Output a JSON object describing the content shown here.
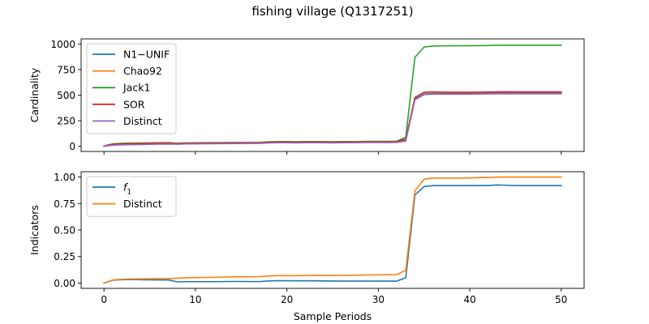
{
  "figure": {
    "title": "fishing village (Q1317251)"
  },
  "chart_data": [
    {
      "type": "line",
      "title": "",
      "xlabel": "",
      "ylabel": "Cardinality",
      "xlim": [
        -2.5,
        52.5
      ],
      "ylim": [
        -50,
        1050
      ],
      "xticks": [
        0,
        10,
        20,
        30,
        40,
        50
      ],
      "yticks": [
        0,
        250,
        500,
        750,
        1000
      ],
      "ytick_labels": [
        "0",
        "250",
        "500",
        "750",
        "1000"
      ],
      "xtick_labels_shown": false,
      "legend_position": "upper-left",
      "grid": false,
      "x": [
        0,
        1,
        2,
        3,
        4,
        5,
        6,
        7,
        8,
        9,
        10,
        11,
        12,
        13,
        14,
        15,
        16,
        17,
        18,
        19,
        20,
        21,
        22,
        23,
        24,
        25,
        26,
        27,
        28,
        29,
        30,
        31,
        32,
        33,
        34,
        35,
        36,
        37,
        38,
        39,
        40,
        41,
        42,
        43,
        44,
        45,
        46,
        47,
        48,
        49,
        50
      ],
      "series": [
        {
          "name": "N1−UNIF",
          "color": "#1f77b4",
          "values": [
            2,
            18,
            22,
            25,
            25,
            27,
            28,
            29,
            24,
            26,
            27,
            28,
            28,
            29,
            30,
            30,
            31,
            31,
            36,
            38,
            38,
            37,
            38,
            38,
            38,
            37,
            38,
            38,
            39,
            40,
            40,
            40,
            41,
            60,
            460,
            510,
            515,
            515,
            515,
            515,
            515,
            516,
            517,
            518,
            518,
            518,
            518,
            518,
            518,
            518,
            518
          ]
        },
        {
          "name": "Chao92",
          "color": "#ff7f0e",
          "values": [
            3,
            20,
            25,
            27,
            28,
            30,
            32,
            33,
            28,
            30,
            31,
            32,
            32,
            33,
            34,
            34,
            35,
            35,
            40,
            42,
            42,
            41,
            42,
            42,
            42,
            41,
            42,
            42,
            43,
            44,
            44,
            44,
            45,
            70,
            480,
            525,
            530,
            528,
            527,
            527,
            527,
            528,
            529,
            530,
            531,
            530,
            530,
            530,
            530,
            530,
            530
          ]
        },
        {
          "name": "Jack1",
          "color": "#2ca02c",
          "values": [
            4,
            25,
            30,
            32,
            33,
            34,
            35,
            36,
            31,
            34,
            35,
            36,
            36,
            37,
            38,
            38,
            38,
            39,
            45,
            47,
            47,
            46,
            47,
            47,
            47,
            46,
            47,
            47,
            48,
            49,
            49,
            49,
            50,
            90,
            870,
            970,
            980,
            982,
            982,
            983,
            983,
            984,
            985,
            988,
            988,
            988,
            988,
            988,
            988,
            988,
            988
          ]
        },
        {
          "name": "SOR",
          "color": "#d62728",
          "values": [
            3,
            20,
            25,
            27,
            28,
            30,
            32,
            33,
            28,
            30,
            31,
            32,
            32,
            33,
            34,
            34,
            35,
            35,
            40,
            42,
            42,
            41,
            42,
            42,
            42,
            41,
            42,
            42,
            43,
            44,
            44,
            44,
            45,
            72,
            475,
            528,
            532,
            530,
            529,
            529,
            529,
            530,
            531,
            532,
            533,
            532,
            532,
            532,
            532,
            532,
            532
          ]
        },
        {
          "name": "Distinct",
          "color": "#9467bd",
          "values": [
            2,
            12,
            15,
            17,
            18,
            20,
            22,
            23,
            21,
            24,
            25,
            26,
            26,
            27,
            28,
            28,
            29,
            29,
            33,
            35,
            35,
            34,
            35,
            35,
            35,
            34,
            35,
            35,
            36,
            37,
            37,
            37,
            38,
            52,
            455,
            505,
            510,
            510,
            510,
            510,
            510,
            511,
            512,
            513,
            513,
            513,
            513,
            513,
            513,
            513,
            513
          ]
        }
      ]
    },
    {
      "type": "line",
      "title": "",
      "xlabel": "Sample Periods",
      "ylabel": "Indicators",
      "xlim": [
        -2.5,
        52.5
      ],
      "ylim": [
        -0.05,
        1.05
      ],
      "xticks": [
        0,
        10,
        20,
        30,
        40,
        50
      ],
      "xtick_labels": [
        "0",
        "10",
        "20",
        "30",
        "40",
        "50"
      ],
      "yticks": [
        0,
        0.25,
        0.5,
        0.75,
        1.0
      ],
      "ytick_labels": [
        "0.00",
        "0.25",
        "0.50",
        "0.75",
        "1.00"
      ],
      "legend_position": "upper-left",
      "grid": false,
      "x": [
        0,
        1,
        2,
        3,
        4,
        5,
        6,
        7,
        8,
        9,
        10,
        11,
        12,
        13,
        14,
        15,
        16,
        17,
        18,
        19,
        20,
        21,
        22,
        23,
        24,
        25,
        26,
        27,
        28,
        29,
        30,
        31,
        32,
        33,
        34,
        35,
        36,
        37,
        38,
        39,
        40,
        41,
        42,
        43,
        44,
        45,
        46,
        47,
        48,
        49,
        50
      ],
      "series": [
        {
          "name": "f1",
          "name_base": "f",
          "name_sub": "1",
          "color": "#1f77b4",
          "values": [
            0.0,
            0.028,
            0.032,
            0.033,
            0.032,
            0.031,
            0.03,
            0.03,
            0.012,
            0.013,
            0.013,
            0.013,
            0.013,
            0.014,
            0.015,
            0.015,
            0.014,
            0.014,
            0.02,
            0.022,
            0.022,
            0.021,
            0.021,
            0.021,
            0.02,
            0.019,
            0.018,
            0.018,
            0.018,
            0.018,
            0.018,
            0.018,
            0.018,
            0.05,
            0.83,
            0.91,
            0.92,
            0.92,
            0.92,
            0.92,
            0.92,
            0.92,
            0.92,
            0.925,
            0.922,
            0.92,
            0.92,
            0.92,
            0.92,
            0.92,
            0.92
          ]
        },
        {
          "name": "Distinct",
          "color": "#ff7f0e",
          "values": [
            0.0,
            0.03,
            0.036,
            0.038,
            0.039,
            0.04,
            0.041,
            0.042,
            0.045,
            0.05,
            0.052,
            0.053,
            0.054,
            0.056,
            0.058,
            0.058,
            0.059,
            0.06,
            0.067,
            0.07,
            0.07,
            0.07,
            0.071,
            0.072,
            0.072,
            0.072,
            0.073,
            0.074,
            0.075,
            0.077,
            0.078,
            0.079,
            0.08,
            0.12,
            0.87,
            0.98,
            0.99,
            0.99,
            0.99,
            0.99,
            0.99,
            0.995,
            0.995,
            1.0,
            1.0,
            1.0,
            1.0,
            1.0,
            1.0,
            1.0,
            1.0
          ]
        }
      ]
    }
  ]
}
